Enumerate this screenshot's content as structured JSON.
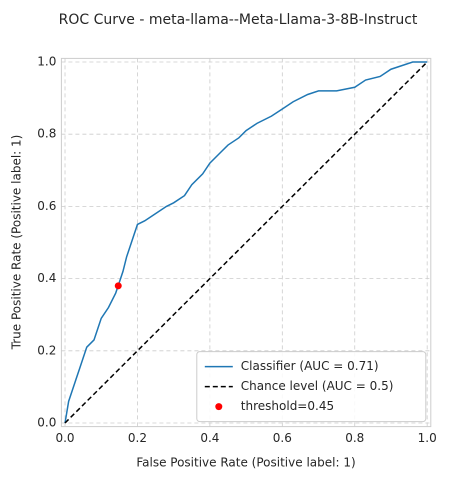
{
  "chart_data": {
    "type": "line",
    "title": "ROC Curve - meta-llama--Meta-Llama-3-8B-Instruct",
    "xlabel": "False Positive Rate (Positive label: 1)",
    "ylabel": "True Positive Rate (Positive label: 1)",
    "xlim": [
      -0.01,
      1.01
    ],
    "ylim": [
      -0.01,
      1.01
    ],
    "xticks": [
      {
        "value": 0,
        "label": "0.0"
      },
      0.2,
      0.4,
      0.6,
      0.8,
      {
        "value": 1,
        "label": "1.0"
      }
    ],
    "yticks": [
      {
        "value": 0,
        "label": "0.0"
      },
      0.2,
      0.4,
      0.6,
      0.8,
      {
        "value": 1,
        "label": "1.0"
      }
    ],
    "grid": true,
    "legend": "lower right",
    "series": [
      {
        "name": "Classifier (AUC = 0.71)",
        "color": "#1f77b4",
        "style": "solid",
        "x": [
          0,
          0.005,
          0.01,
          0.02,
          0.03,
          0.04,
          0.05,
          0.06,
          0.08,
          0.09,
          0.1,
          0.12,
          0.14,
          0.15,
          0.16,
          0.17,
          0.18,
          0.19,
          0.2,
          0.22,
          0.25,
          0.28,
          0.3,
          0.33,
          0.35,
          0.38,
          0.4,
          0.43,
          0.45,
          0.48,
          0.5,
          0.53,
          0.57,
          0.6,
          0.63,
          0.67,
          0.7,
          0.75,
          0.8,
          0.83,
          0.87,
          0.9,
          0.93,
          0.96,
          1
        ],
        "values": [
          0,
          0.03,
          0.06,
          0.09,
          0.12,
          0.15,
          0.18,
          0.21,
          0.23,
          0.26,
          0.29,
          0.32,
          0.36,
          0.39,
          0.42,
          0.46,
          0.49,
          0.52,
          0.55,
          0.56,
          0.58,
          0.6,
          0.61,
          0.63,
          0.66,
          0.69,
          0.72,
          0.75,
          0.77,
          0.79,
          0.81,
          0.83,
          0.85,
          0.87,
          0.89,
          0.91,
          0.92,
          0.92,
          0.93,
          0.95,
          0.96,
          0.98,
          0.99,
          1,
          1
        ]
      },
      {
        "name": "Chance level (AUC = 0.5)",
        "color": "#000000",
        "style": "dashed",
        "x": [
          0,
          1
        ],
        "values": [
          0,
          1
        ]
      },
      {
        "name": "threshold=0.45",
        "color": "#ff0000",
        "style": "marker",
        "x": [
          0.147
        ],
        "values": [
          0.38
        ]
      }
    ]
  }
}
